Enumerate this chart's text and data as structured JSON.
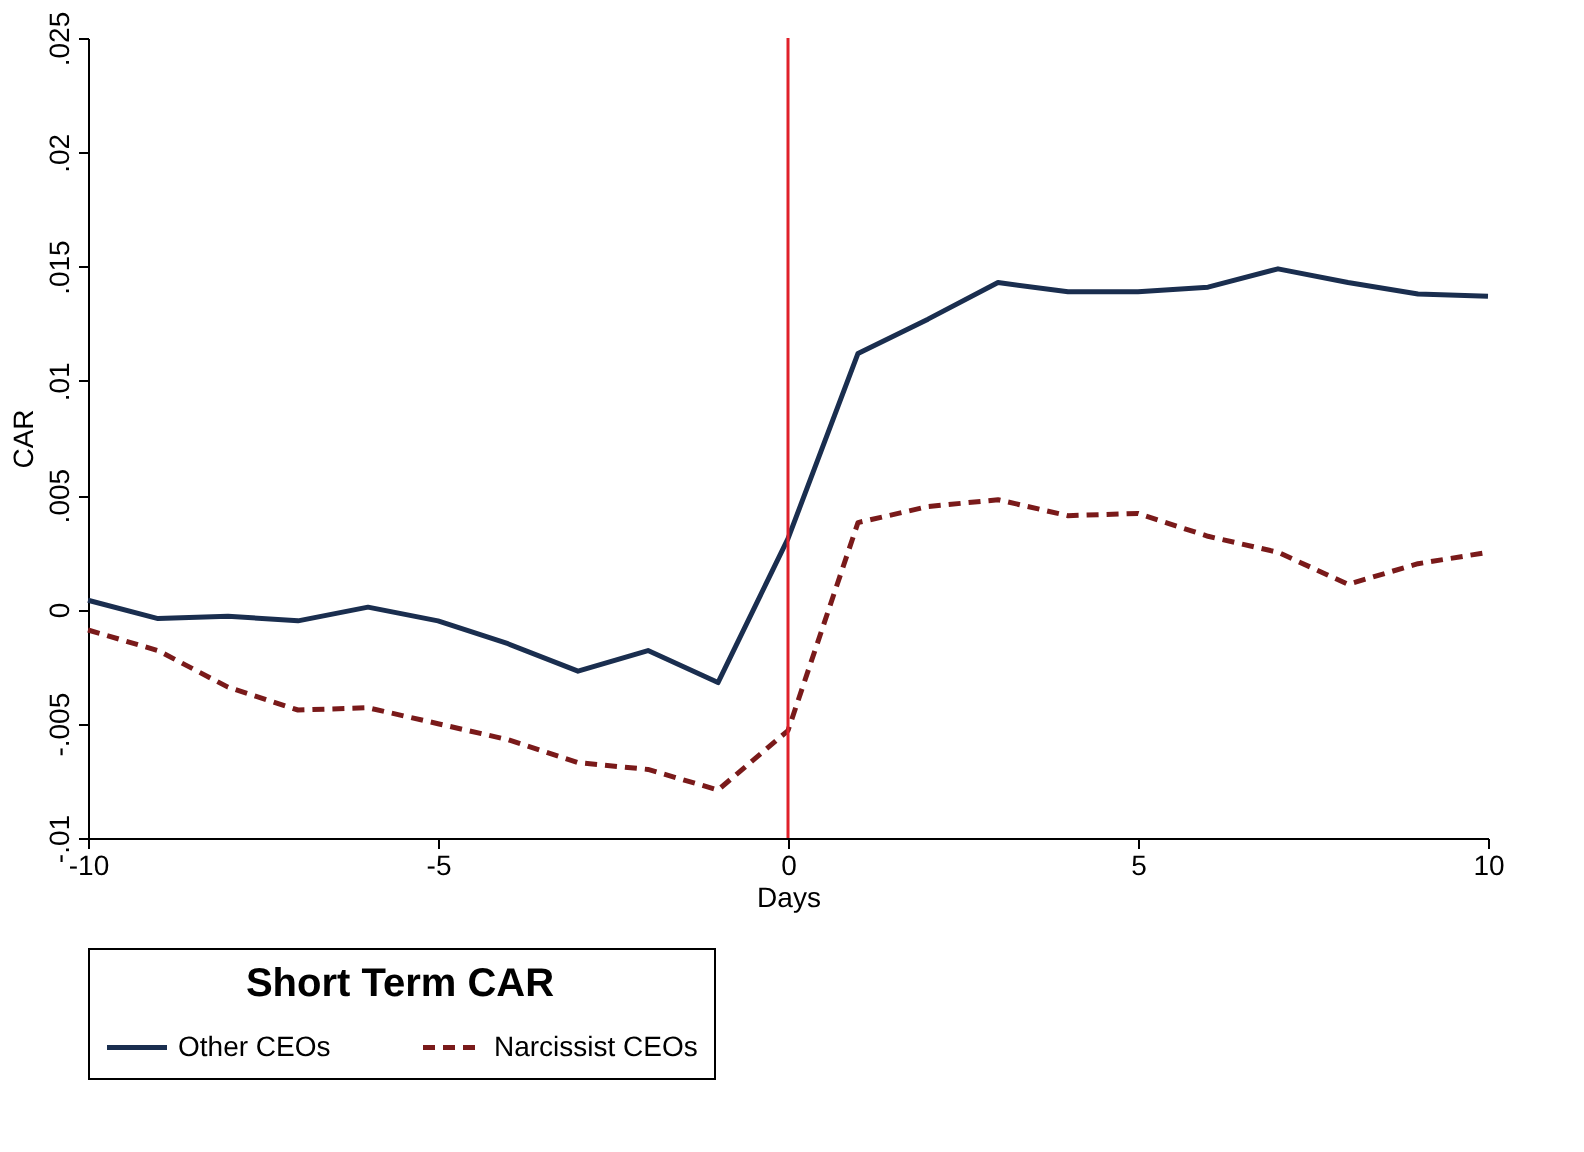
{
  "chart_data": {
    "type": "line",
    "xlabel": "Days",
    "ylabel": "CAR",
    "legend_title": "Short Term CAR",
    "legend": "bottom",
    "grid": false,
    "marker": "none",
    "x": [
      -10,
      -9,
      -8,
      -7,
      -6,
      -5,
      -4,
      -3,
      -2,
      -1,
      0,
      1,
      2,
      3,
      4,
      5,
      6,
      7,
      8,
      9,
      10
    ],
    "xlim": [
      -10,
      10
    ],
    "xticks": [
      -10,
      -5,
      0,
      5,
      10
    ],
    "ylim": [
      -0.01,
      0.025
    ],
    "yticks": [
      {
        "value": -0.01,
        "label": "-.01"
      },
      {
        "value": -0.005,
        "label": "-.005"
      },
      0,
      {
        "value": 0.005,
        "label": ".005"
      },
      {
        "value": 0.01,
        "label": ".01"
      },
      {
        "value": 0.015,
        "label": ".015"
      },
      {
        "value": 0.02,
        "label": ".02"
      },
      {
        "value": 0.025,
        "label": ".025"
      }
    ],
    "series": [
      {
        "name": "Other CEOs",
        "color": "#1a2e4f",
        "line_style": "solid",
        "values": [
          0.0004,
          -0.0004,
          -0.0003,
          -0.0005,
          0.0001,
          -0.0005,
          -0.0015,
          -0.0027,
          -0.0018,
          -0.0032,
          0.0031,
          0.0112,
          0.0127,
          0.0143,
          0.0139,
          0.0139,
          0.0141,
          0.0149,
          0.0143,
          0.0138,
          0.0137
        ]
      },
      {
        "name": "Narcissist CEOs",
        "color": "#7a1a1a",
        "line_style": "dashed",
        "values": [
          -0.0009,
          -0.0018,
          -0.0034,
          -0.0044,
          -0.0043,
          -0.005,
          -0.0057,
          -0.0067,
          -0.007,
          -0.0079,
          -0.0053,
          0.0038,
          0.0045,
          0.0048,
          0.0041,
          0.0042,
          0.0032,
          0.0025,
          0.0011,
          0.002,
          0.0025
        ]
      }
    ],
    "ref_lines": [
      {
        "axis": "x",
        "value": 0,
        "color": "#e0202a",
        "line_style": "solid"
      }
    ]
  }
}
